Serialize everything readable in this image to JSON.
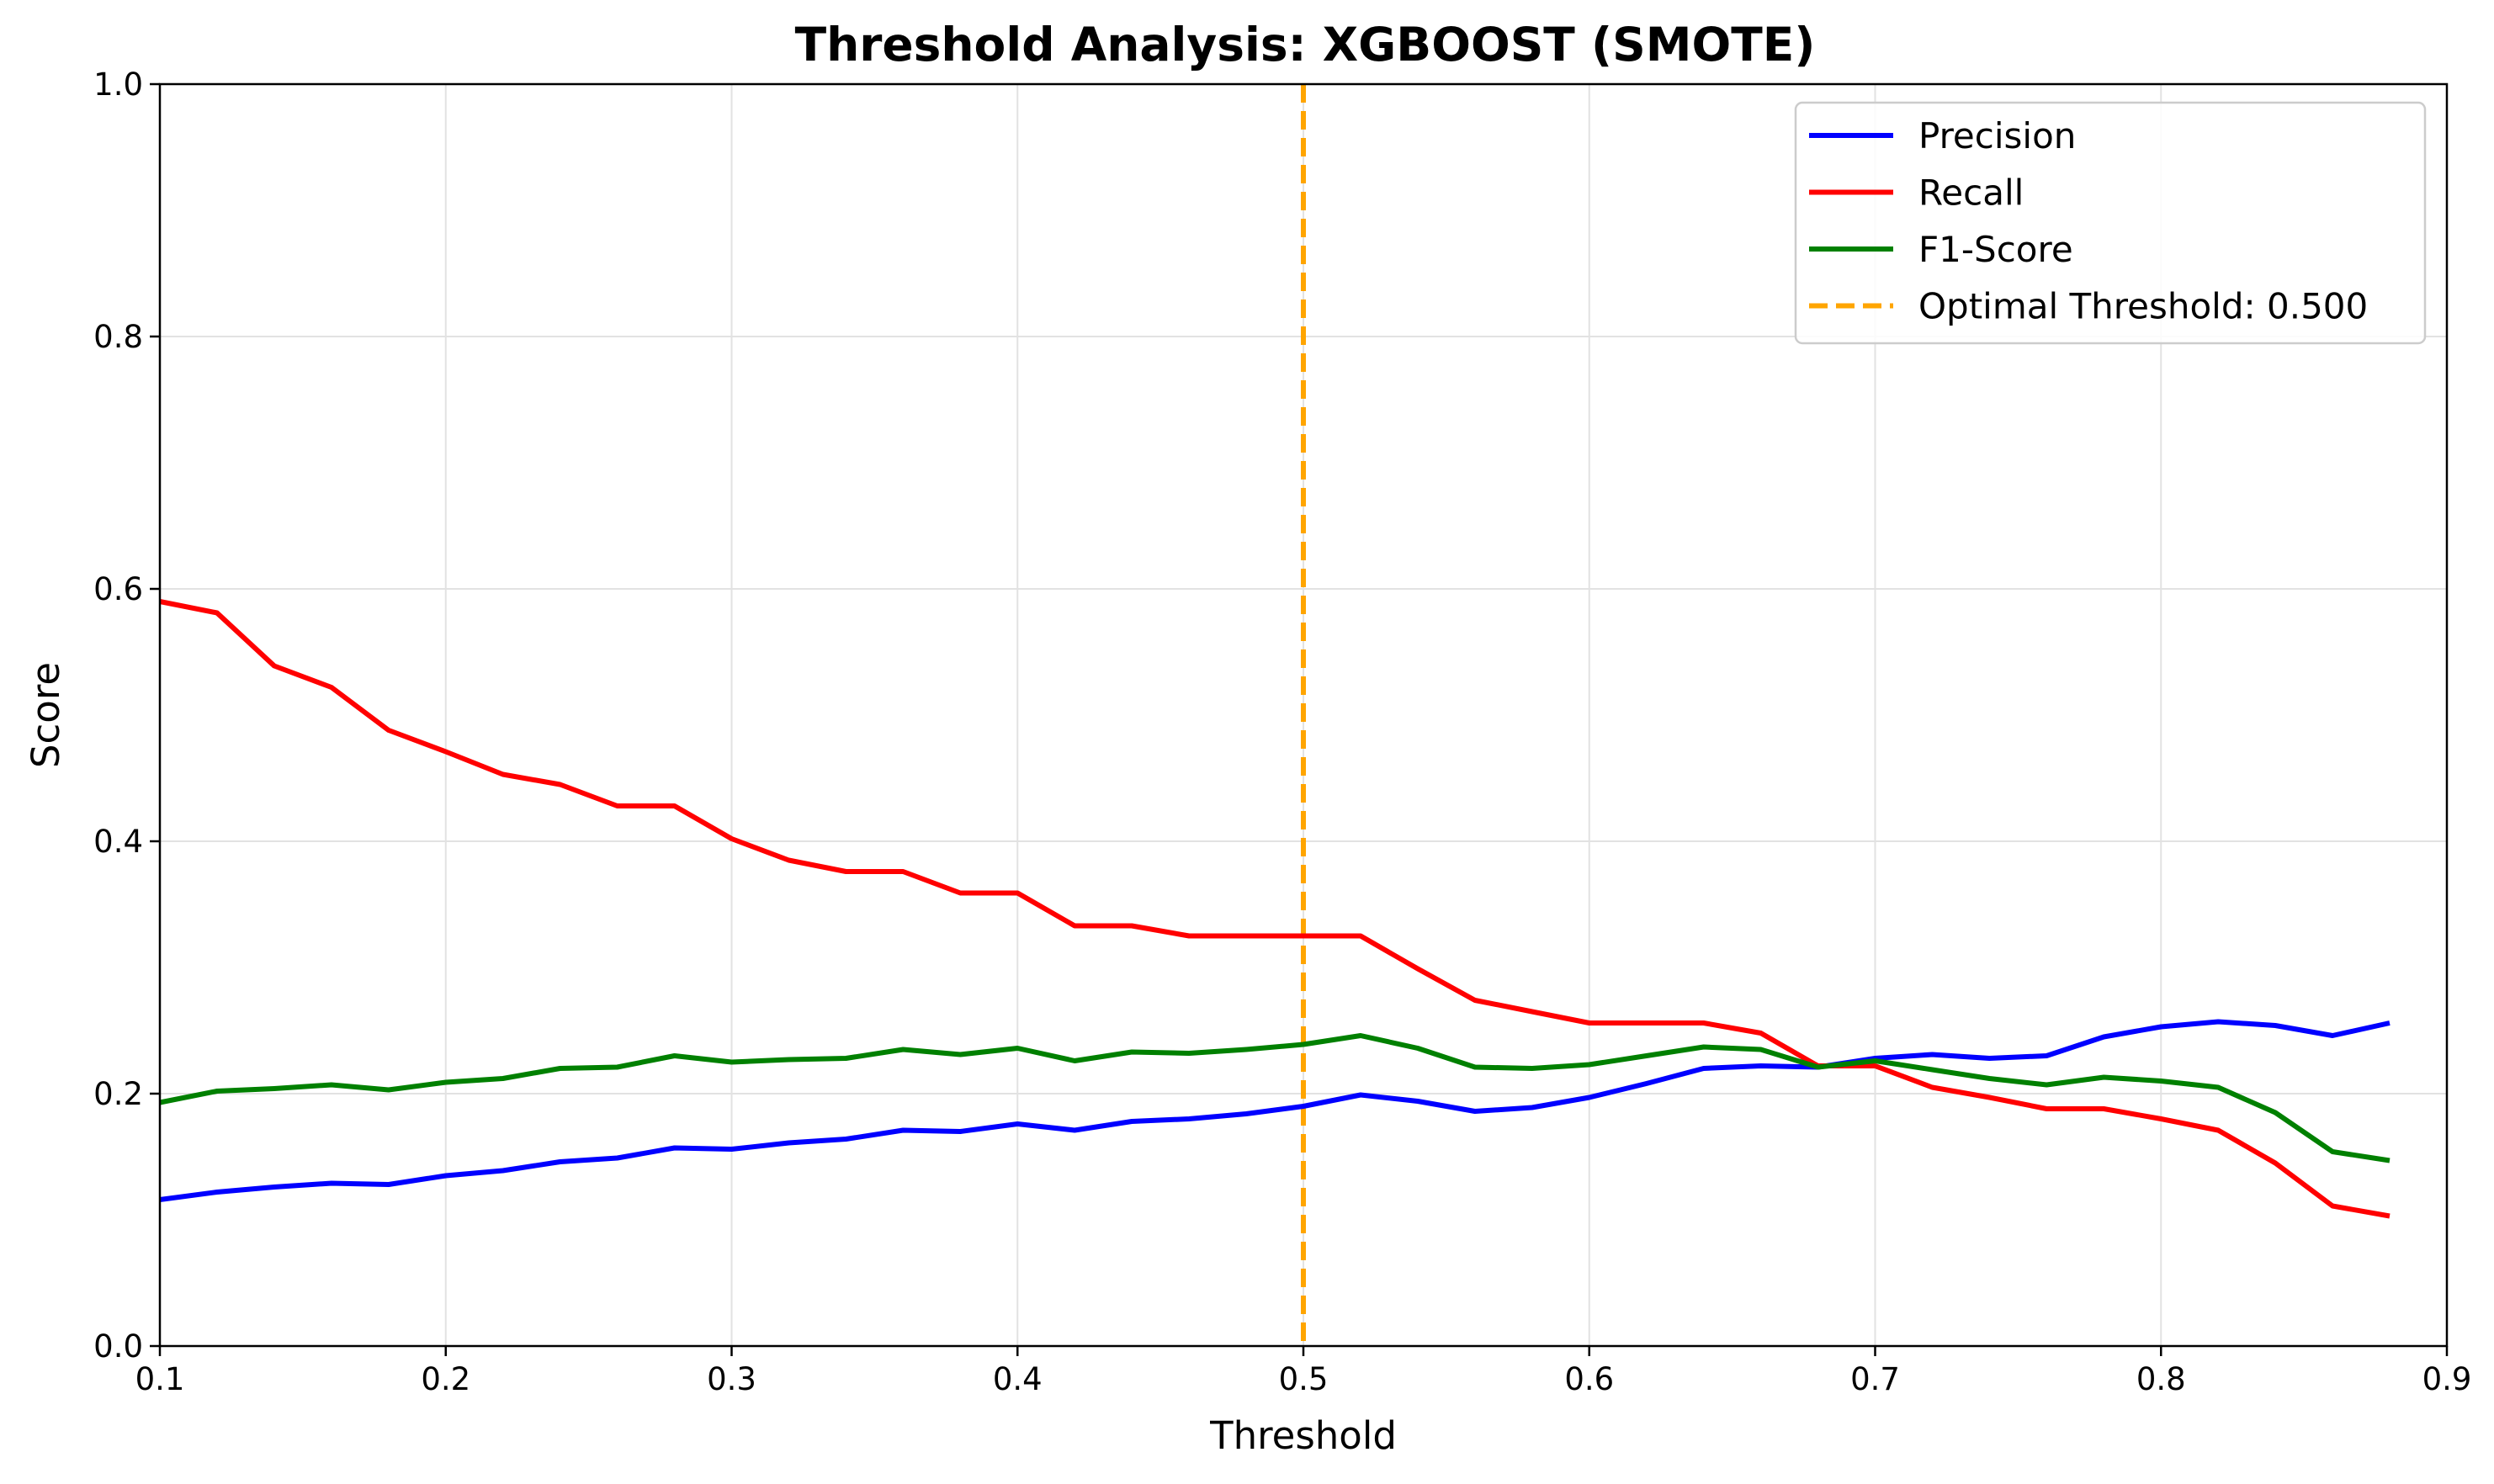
{
  "chart_data": {
    "type": "line",
    "title": "Threshold Analysis: XGBOOST (SMOTE)",
    "xlabel": "Threshold",
    "ylabel": "Score",
    "xlim": [
      0.1,
      0.9
    ],
    "ylim": [
      0.0,
      1.0
    ],
    "xticks": [
      0.1,
      0.2,
      0.3,
      0.4,
      0.5,
      0.6,
      0.7,
      0.8,
      0.9
    ],
    "xtick_labels": [
      "0.1",
      "0.2",
      "0.3",
      "0.4",
      "0.5",
      "0.6",
      "0.7",
      "0.8",
      "0.9"
    ],
    "yticks": [
      0.0,
      0.2,
      0.4,
      0.6,
      0.8,
      1.0
    ],
    "ytick_labels": [
      "0.0",
      "0.2",
      "0.4",
      "0.6",
      "0.8",
      "1.0"
    ],
    "grid": true,
    "legend_position": "top-right",
    "x": [
      0.1,
      0.12,
      0.14,
      0.16,
      0.18,
      0.2,
      0.22,
      0.24,
      0.26,
      0.28,
      0.3,
      0.32,
      0.34,
      0.36,
      0.38,
      0.4,
      0.42,
      0.44,
      0.46,
      0.48,
      0.5,
      0.52,
      0.54,
      0.56,
      0.58,
      0.6,
      0.62,
      0.64,
      0.66,
      0.68,
      0.7,
      0.72,
      0.74,
      0.76,
      0.78,
      0.8,
      0.82,
      0.84,
      0.86,
      0.88
    ],
    "series": [
      {
        "name": "Precision",
        "color": "#0000ff",
        "values": [
          0.116,
          0.122,
          0.126,
          0.129,
          0.128,
          0.135,
          0.139,
          0.146,
          0.149,
          0.157,
          0.156,
          0.161,
          0.164,
          0.171,
          0.17,
          0.176,
          0.171,
          0.178,
          0.18,
          0.184,
          0.19,
          0.199,
          0.194,
          0.186,
          0.189,
          0.197,
          0.208,
          0.22,
          0.222,
          0.221,
          0.228,
          0.231,
          0.228,
          0.23,
          0.245,
          0.253,
          0.257,
          0.254,
          0.246,
          0.256
        ]
      },
      {
        "name": "Recall",
        "color": "#ff0000",
        "values": [
          0.59,
          0.581,
          0.539,
          0.522,
          0.488,
          0.471,
          0.453,
          0.445,
          0.428,
          0.428,
          0.402,
          0.385,
          0.376,
          0.376,
          0.359,
          0.359,
          0.333,
          0.333,
          0.325,
          0.325,
          0.325,
          0.325,
          0.299,
          0.274,
          0.265,
          0.256,
          0.256,
          0.256,
          0.248,
          0.222,
          0.222,
          0.205,
          0.197,
          0.188,
          0.188,
          0.18,
          0.171,
          0.145,
          0.111,
          0.103
        ]
      },
      {
        "name": "F1-Score",
        "color": "#008000",
        "values": [
          0.193,
          0.202,
          0.204,
          0.207,
          0.203,
          0.209,
          0.212,
          0.22,
          0.221,
          0.23,
          0.225,
          0.227,
          0.228,
          0.235,
          0.231,
          0.236,
          0.226,
          0.233,
          0.232,
          0.235,
          0.239,
          0.246,
          0.236,
          0.221,
          0.22,
          0.223,
          0.23,
          0.237,
          0.235,
          0.221,
          0.226,
          0.219,
          0.212,
          0.207,
          0.213,
          0.21,
          0.205,
          0.185,
          0.154,
          0.147
        ]
      }
    ],
    "vline": {
      "name": "Optimal Threshold: 0.500",
      "x": 0.5,
      "color": "#ffa500",
      "style": "dashed"
    }
  }
}
